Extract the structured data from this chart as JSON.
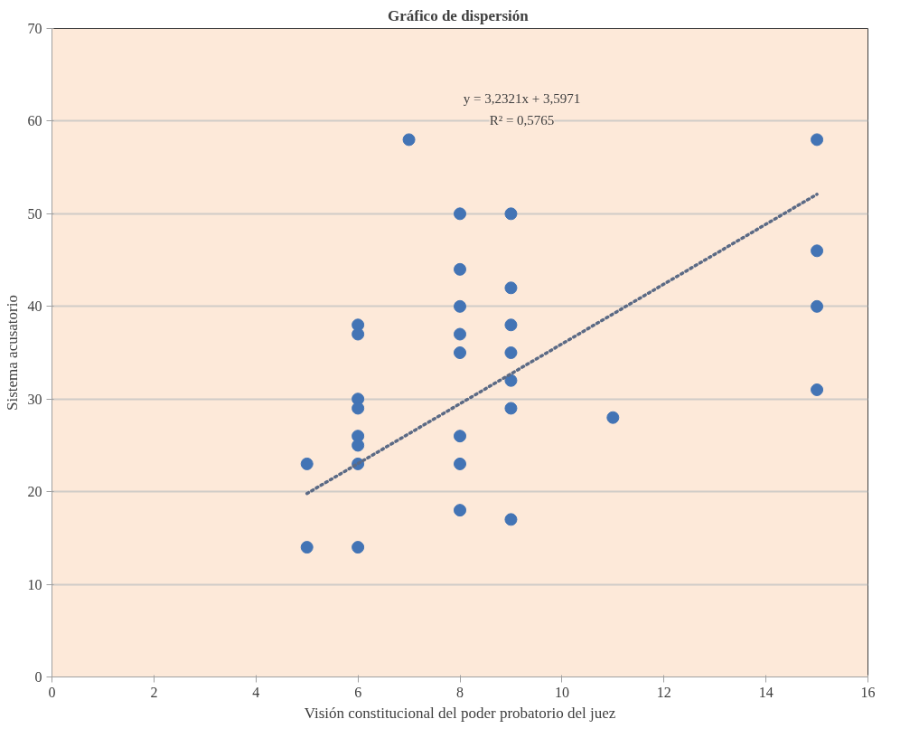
{
  "chart_data": {
    "type": "scatter",
    "title": "Gráfico  de dispersión",
    "xlabel": "Visión constitucional del poder probatorio del juez",
    "ylabel": "Sistema acusatorio",
    "series": [
      {
        "color": "#4374b5",
        "x": [
          5,
          5,
          6,
          6,
          6,
          6,
          6,
          6,
          6,
          6,
          7,
          8,
          8,
          8,
          8,
          8,
          8,
          8,
          8,
          9,
          9,
          9,
          9,
          9,
          9,
          9,
          11,
          15,
          15,
          15,
          15
        ],
        "values": [
          23,
          14,
          38,
          37,
          30,
          29,
          26,
          25,
          23,
          14,
          58,
          50,
          44,
          40,
          37,
          35,
          26,
          23,
          18,
          50,
          42,
          38,
          35,
          32,
          29,
          17,
          28,
          58,
          46,
          40,
          31
        ],
        "marker": "circle"
      },
      {
        "type": "line",
        "color": "#5b6a85",
        "x": [
          5,
          15
        ],
        "values": [
          19.8,
          52.1
        ],
        "line_style": "dotted",
        "marker": "none"
      }
    ],
    "annotations": [
      "y = 3,2321x + 3,5971",
      "R² = 0,5765"
    ],
    "xlim": [
      0,
      16
    ],
    "xticks": [
      0,
      2,
      4,
      6,
      8,
      10,
      12,
      14,
      16
    ],
    "ylim": [
      0,
      70
    ],
    "yticks": [
      0,
      10,
      20,
      30,
      40,
      50,
      60,
      70
    ],
    "grid": "y"
  }
}
